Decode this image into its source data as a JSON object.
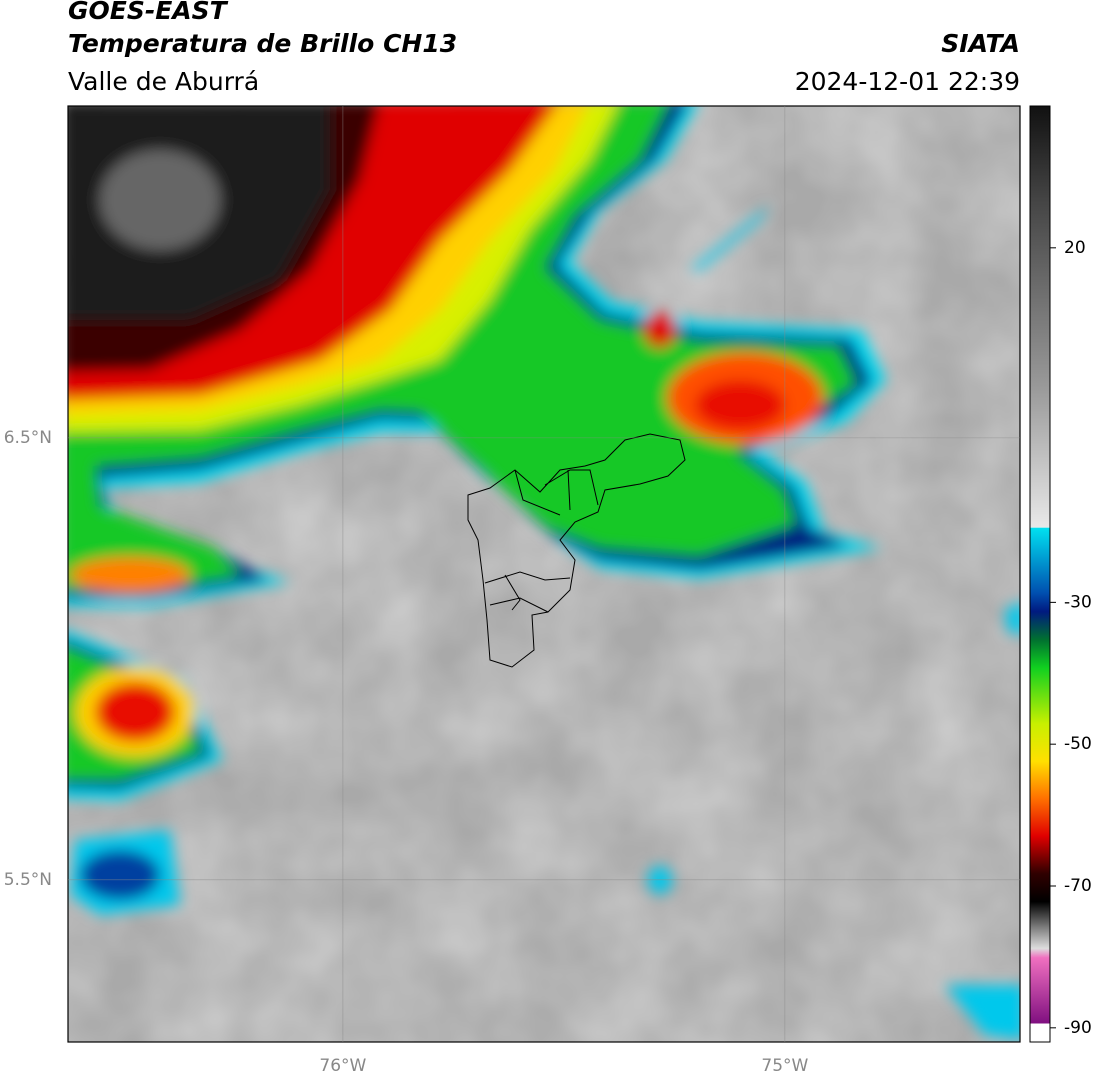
{
  "header": {
    "title": "GOES-EAST",
    "subtitle": "Temperatura de Brillo CH13",
    "region": "Valle de Aburrá",
    "source": "SIATA",
    "datetime": "2024-12-01 22:39"
  },
  "map": {
    "xlim": [
      -76.622,
      -74.468
    ],
    "ylim": [
      5.133,
      7.251
    ],
    "xticks": [
      {
        "value": -76,
        "label": "76°W"
      },
      {
        "value": -75,
        "label": "75°W"
      }
    ],
    "yticks": [
      {
        "value": 6.5,
        "label": "6.5°N"
      },
      {
        "value": 5.5,
        "label": "5.5°N"
      }
    ],
    "grid": true
  },
  "colorbar": {
    "lim": [
      -92,
      40
    ],
    "ticks": [
      20,
      -30,
      -50,
      -70,
      -90
    ]
  }
}
